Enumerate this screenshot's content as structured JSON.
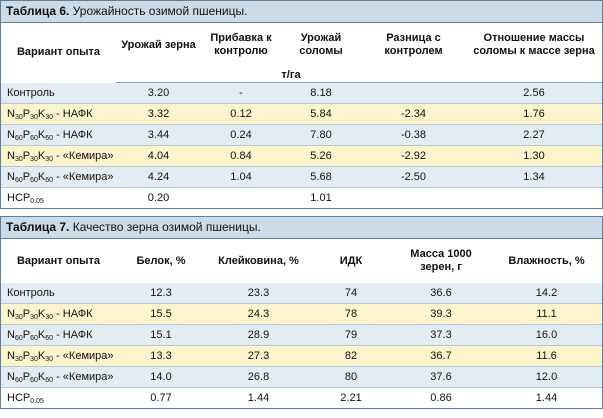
{
  "table6": {
    "title_bold": "Таблица 6.",
    "title_rest": "Урожайность озимой пшеницы.",
    "headers": [
      "Вариант опыта",
      "Урожай зерна",
      "Прибавка к контролю",
      "Урожай соломы",
      "Разница с контролем",
      "Отношение массы соломы к массе зерна"
    ],
    "unit": "т/га",
    "rows": [
      {
        "label": [
          {
            "text": "Контроль"
          }
        ],
        "cells": [
          "3.20",
          "-",
          "8.18",
          null,
          "2.56"
        ]
      },
      {
        "label": [
          {
            "text": "N",
            "sub": "30"
          },
          {
            "text": "P",
            "sub": "30"
          },
          {
            "text": "K",
            "sub": "30"
          },
          {
            "text": " - НАФК"
          }
        ],
        "cells": [
          "3.32",
          "0.12",
          "5.84",
          "-2.34",
          "1.76"
        ]
      },
      {
        "label": [
          {
            "text": "N",
            "sub": "60"
          },
          {
            "text": "P",
            "sub": "60"
          },
          {
            "text": "K",
            "sub": "60"
          },
          {
            "text": " - НАФК"
          }
        ],
        "cells": [
          "3.44",
          "0.24",
          "7.80",
          "-0.38",
          "2.27"
        ]
      },
      {
        "label": [
          {
            "text": "N",
            "sub": "30"
          },
          {
            "text": "P",
            "sub": "30"
          },
          {
            "text": "K",
            "sub": "30"
          },
          {
            "text": " - «Кемира»"
          }
        ],
        "cells": [
          "4.04",
          "0.84",
          "5.26",
          "-2.92",
          "1.30"
        ]
      },
      {
        "label": [
          {
            "text": "N",
            "sub": "60"
          },
          {
            "text": "P",
            "sub": "60"
          },
          {
            "text": "K",
            "sub": "60"
          },
          {
            "text": " - «Кемира»"
          }
        ],
        "cells": [
          "4.24",
          "1.04",
          "5.68",
          "-2.50",
          "1.34"
        ]
      },
      {
        "label": [
          {
            "text": "НСР",
            "sub": "0.05"
          }
        ],
        "cells": [
          "0.20",
          null,
          "1.01",
          null,
          null
        ]
      }
    ]
  },
  "table7": {
    "title_bold": "Таблица 7.",
    "title_rest": "Качество зерна озимой пшеницы.",
    "headers": [
      "Вариант опыта",
      "Белок, %",
      "Клейковина, %",
      "ИДК",
      "Масса 1000 зерен, г",
      "Влажность, %"
    ],
    "rows": [
      {
        "label": [
          {
            "text": "Контроль"
          }
        ],
        "cells": [
          "12.3",
          "23.3",
          "74",
          "36.6",
          "14.2"
        ]
      },
      {
        "label": [
          {
            "text": "N",
            "sub": "30"
          },
          {
            "text": "P",
            "sub": "30"
          },
          {
            "text": "K",
            "sub": "30"
          },
          {
            "text": " - НАФК"
          }
        ],
        "cells": [
          "15.5",
          "24.3",
          "78",
          "39.3",
          "11.1"
        ]
      },
      {
        "label": [
          {
            "text": "N",
            "sub": "60"
          },
          {
            "text": "P",
            "sub": "60"
          },
          {
            "text": "K",
            "sub": "60"
          },
          {
            "text": " - НАФК"
          }
        ],
        "cells": [
          "15.1",
          "28.9",
          "79",
          "37.3",
          "16.0"
        ]
      },
      {
        "label": [
          {
            "text": "N",
            "sub": "30"
          },
          {
            "text": "P",
            "sub": "30"
          },
          {
            "text": "K",
            "sub": "30"
          },
          {
            "text": " - «Кемира»"
          }
        ],
        "cells": [
          "13.3",
          "27.3",
          "82",
          "36.7",
          "11.6"
        ]
      },
      {
        "label": [
          {
            "text": "N",
            "sub": "60"
          },
          {
            "text": "P",
            "sub": "60"
          },
          {
            "text": "K",
            "sub": "60"
          },
          {
            "text": " - «Кемира»"
          }
        ],
        "cells": [
          "14.0",
          "26.8",
          "80",
          "37.6",
          "12.0"
        ]
      },
      {
        "label": [
          {
            "text": "НСР",
            "sub": "0.05"
          }
        ],
        "cells": [
          "0.77",
          "1.44",
          "2.21",
          "0.86",
          "1.44"
        ]
      }
    ]
  }
}
